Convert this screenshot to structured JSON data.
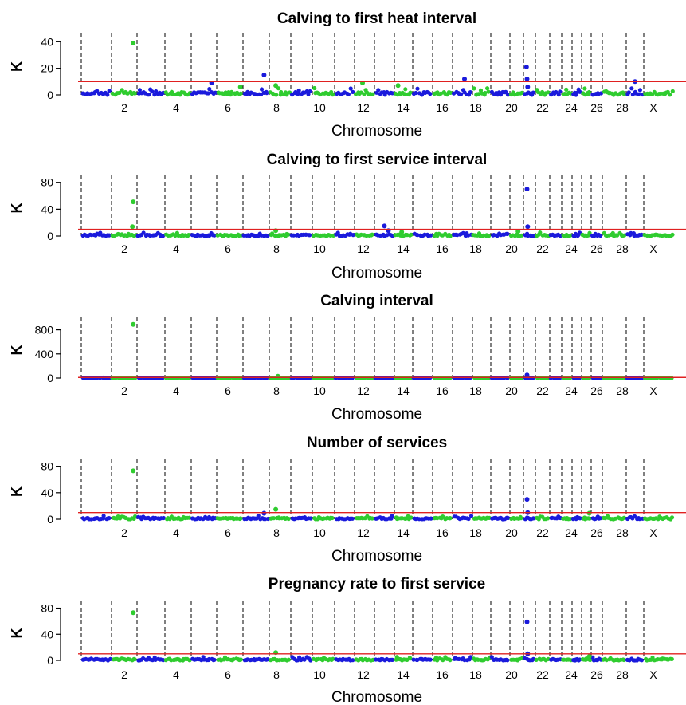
{
  "figure": {
    "x_tick_labels": [
      "2",
      "4",
      "6",
      "8",
      "10",
      "12",
      "14",
      "16",
      "18",
      "20",
      "22",
      "24",
      "26",
      "28",
      "X"
    ],
    "chromosome_order": [
      "1",
      "2",
      "3",
      "4",
      "5",
      "6",
      "7",
      "8",
      "9",
      "10",
      "11",
      "12",
      "13",
      "14",
      "15",
      "16",
      "17",
      "18",
      "19",
      "20",
      "21",
      "22",
      "23",
      "24",
      "25",
      "26",
      "27",
      "28",
      "29",
      "X"
    ],
    "colors": {
      "odd_chromosome": "#1a1adc",
      "even_chromosome": "#2fcc2f",
      "threshold": "#e02020",
      "boundary": "#000000"
    }
  },
  "chart_data": [
    {
      "type": "scatter",
      "title": "Calving to first heat interval",
      "xlabel": "Chromosome",
      "ylabel": "K",
      "yticks": [
        0,
        20,
        40
      ],
      "ylim": [
        0,
        45
      ],
      "threshold": 10,
      "peaks": [
        {
          "chr": "2",
          "pos": 0.85,
          "k": 39
        },
        {
          "chr": "5",
          "pos": 0.8,
          "k": 9
        },
        {
          "chr": "6",
          "pos": 0.9,
          "k": 6
        },
        {
          "chr": "7",
          "pos": 0.8,
          "k": 15
        },
        {
          "chr": "8",
          "pos": 0.3,
          "k": 7
        },
        {
          "chr": "12",
          "pos": 0.4,
          "k": 9
        },
        {
          "chr": "14",
          "pos": 0.2,
          "k": 7
        },
        {
          "chr": "17",
          "pos": 0.6,
          "k": 12
        },
        {
          "chr": "21",
          "pos": 0.25,
          "k": 21
        },
        {
          "chr": "21",
          "pos": 0.3,
          "k": 12
        },
        {
          "chr": "21",
          "pos": 0.35,
          "k": 6
        },
        {
          "chr": "29",
          "pos": 0.5,
          "k": 10
        }
      ]
    },
    {
      "type": "scatter",
      "title": "Calving to first service interval",
      "xlabel": "Chromosome",
      "ylabel": "K",
      "yticks": [
        0,
        40,
        80
      ],
      "ylim": [
        0,
        88
      ],
      "threshold": 10,
      "peaks": [
        {
          "chr": "2",
          "pos": 0.85,
          "k": 51
        },
        {
          "chr": "2",
          "pos": 0.82,
          "k": 14
        },
        {
          "chr": "8",
          "pos": 0.3,
          "k": 8
        },
        {
          "chr": "13",
          "pos": 0.5,
          "k": 15
        },
        {
          "chr": "13",
          "pos": 0.7,
          "k": 8
        },
        {
          "chr": "14",
          "pos": 0.4,
          "k": 6
        },
        {
          "chr": "20",
          "pos": 0.6,
          "k": 7
        },
        {
          "chr": "21",
          "pos": 0.3,
          "k": 70
        },
        {
          "chr": "21",
          "pos": 0.35,
          "k": 14
        }
      ]
    },
    {
      "type": "scatter",
      "title": "Calving interval",
      "xlabel": "Chromosome",
      "ylabel": "K",
      "yticks": [
        0,
        400,
        800
      ],
      "ylim": [
        0,
        980
      ],
      "threshold": 10,
      "peaks": [
        {
          "chr": "2",
          "pos": 0.85,
          "k": 890
        },
        {
          "chr": "8",
          "pos": 0.4,
          "k": 30
        },
        {
          "chr": "21",
          "pos": 0.3,
          "k": 50
        }
      ]
    },
    {
      "type": "scatter",
      "title": "Number of services",
      "xlabel": "Chromosome",
      "ylabel": "K",
      "yticks": [
        0,
        40,
        80
      ],
      "ylim": [
        0,
        88
      ],
      "threshold": 10,
      "peaks": [
        {
          "chr": "2",
          "pos": 0.85,
          "k": 73
        },
        {
          "chr": "7",
          "pos": 0.8,
          "k": 9
        },
        {
          "chr": "8",
          "pos": 0.3,
          "k": 15
        },
        {
          "chr": "21",
          "pos": 0.3,
          "k": 30
        },
        {
          "chr": "21",
          "pos": 0.35,
          "k": 10
        },
        {
          "chr": "26",
          "pos": 0.8,
          "k": 9
        }
      ]
    },
    {
      "type": "scatter",
      "title": "Pregnancy rate to first service",
      "xlabel": "Chromosome",
      "ylabel": "K",
      "yticks": [
        0,
        40,
        80
      ],
      "ylim": [
        0,
        88
      ],
      "threshold": 10,
      "peaks": [
        {
          "chr": "2",
          "pos": 0.85,
          "k": 73
        },
        {
          "chr": "8",
          "pos": 0.3,
          "k": 12
        },
        {
          "chr": "21",
          "pos": 0.3,
          "k": 59
        },
        {
          "chr": "21",
          "pos": 0.35,
          "k": 10
        },
        {
          "chr": "26",
          "pos": 0.8,
          "k": 6
        }
      ]
    }
  ]
}
